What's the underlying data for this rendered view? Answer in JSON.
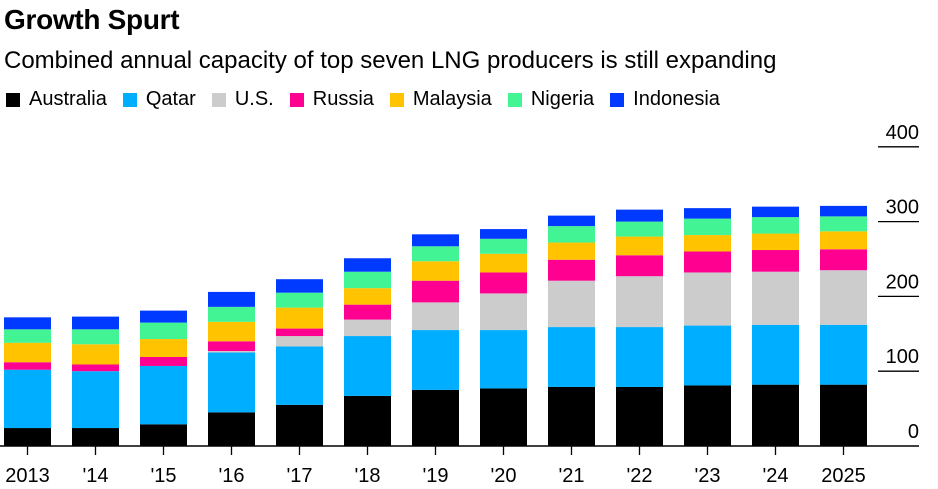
{
  "title": "Growth Spurt",
  "subtitle": "Combined annual capacity of top seven LNG producers is still expanding",
  "chart_data": {
    "type": "bar",
    "stacked": true,
    "title": "Growth Spurt",
    "subtitle": "Combined annual capacity of top seven LNG producers is still expanding",
    "xlabel": "",
    "ylabel": "",
    "ylim": [
      0,
      400
    ],
    "yticks": [
      0,
      100,
      200,
      300,
      400
    ],
    "ytick_labels": [
      "0",
      "100",
      "200",
      "300",
      "400"
    ],
    "y_axis_position": "right",
    "legend_position": "top-left",
    "grid": false,
    "categories": [
      "2013",
      "'14",
      "'15",
      "'16",
      "'17",
      "'18",
      "'19",
      "'20",
      "'21",
      "'22",
      "'23",
      "'24",
      "2025"
    ],
    "series": [
      {
        "name": "Australia",
        "color": "#000000",
        "values": [
          24,
          24,
          29,
          45,
          55,
          67,
          75,
          77,
          79,
          79,
          81,
          82,
          82
        ]
      },
      {
        "name": "Qatar",
        "color": "#00aeff",
        "values": [
          78,
          76,
          78,
          80,
          78,
          80,
          80,
          78,
          80,
          80,
          80,
          80,
          80
        ]
      },
      {
        "name": "U.S.",
        "color": "#cccccc",
        "values": [
          0,
          0,
          0,
          2,
          14,
          22,
          37,
          49,
          62,
          68,
          71,
          71,
          73
        ]
      },
      {
        "name": "Russia",
        "color": "#ff0090",
        "values": [
          10,
          9,
          12,
          13,
          10,
          20,
          29,
          28,
          28,
          28,
          28,
          29,
          28
        ]
      },
      {
        "name": "Malaysia",
        "color": "#ffc300",
        "values": [
          26,
          27,
          24,
          26,
          28,
          22,
          26,
          25,
          23,
          25,
          22,
          22,
          24
        ]
      },
      {
        "name": "Nigeria",
        "color": "#43f495",
        "values": [
          18,
          20,
          22,
          20,
          20,
          22,
          20,
          20,
          22,
          20,
          22,
          22,
          20
        ]
      },
      {
        "name": "Indonesia",
        "color": "#0039ff",
        "values": [
          16,
          17,
          16,
          20,
          18,
          18,
          16,
          13,
          14,
          16,
          14,
          14,
          14
        ]
      }
    ]
  }
}
